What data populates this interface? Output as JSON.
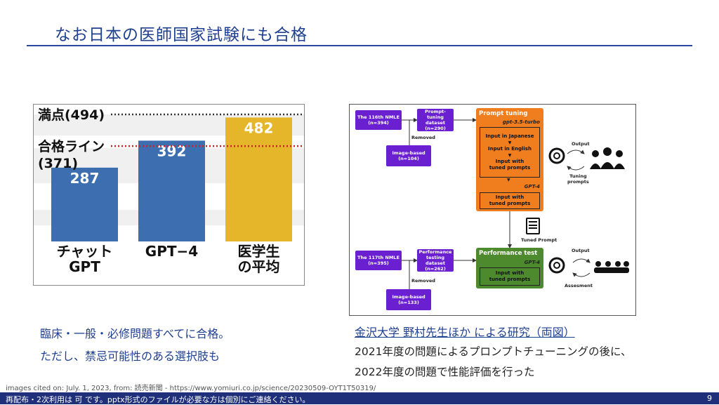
{
  "slide": {
    "title": "なお日本の医師国家試験にも合格",
    "page_number": "9"
  },
  "chart_data": {
    "type": "bar",
    "categories": [
      "チャットGPT",
      "GPT−4",
      "医学生の平均"
    ],
    "category_lines": [
      [
        "チャット",
        "GPT"
      ],
      [
        "GPT−4"
      ],
      [
        "医学生",
        "の平均"
      ]
    ],
    "values": [
      287,
      392,
      482
    ],
    "value_labels": [
      "287",
      "392",
      "482"
    ],
    "ylim": [
      0,
      494
    ],
    "reference_lines": [
      {
        "label_lines": [
          "満点(494)"
        ],
        "value": 494,
        "style": "dotted",
        "color": "#333333"
      },
      {
        "label_lines": [
          "合格ライン",
          "(371)"
        ],
        "value": 371,
        "style": "dotted",
        "color": "#cc2222"
      }
    ],
    "colors": [
      "#3d6fb0",
      "#3d6fb0",
      "#e6b62a"
    ]
  },
  "diagram": {
    "nmle116": [
      "The 116th NMLE",
      "(n=394)"
    ],
    "prompt_dataset": [
      "Prompt-tuning",
      "dataset",
      "(n=290)"
    ],
    "removed1": "Removed",
    "image_based1": [
      "Image-based",
      "(n=104)"
    ],
    "prompt_tuning_title": "Prompt tuning",
    "model_35": "gpt-3.5-turbo",
    "steps": [
      "Input in Japanese",
      "Input in English",
      "Input with",
      "tuned prompts"
    ],
    "model_gpt4_a": "GPT-4",
    "tuned_box": [
      "Input with",
      "tuned prompts"
    ],
    "output1": "Output",
    "tuning_prompts": [
      "Tuning",
      "prompts"
    ],
    "tuned_prompt": "Tuned Prompt",
    "nmle117": [
      "The 117th NMLE",
      "(n=395)"
    ],
    "perf_dataset": [
      "Performance",
      "testing dataset",
      "(n=262)"
    ],
    "removed2": "Removed",
    "image_based2": [
      "Image-based",
      "(n=133)"
    ],
    "perf_title": "Performance test",
    "model_gpt4_b": "GPT-4",
    "perf_box": [
      "Input with",
      "tuned prompts"
    ],
    "output2": "Output",
    "assessment": "Assesment"
  },
  "notes": {
    "left_line1": "臨床・一般・必修問題すべてに合格。",
    "left_line2": "ただし、禁忌可能性のある選択肢も",
    "right_link": "金沢大学 野村先生ほか による研究（両図）",
    "right_line2": "2021年度の問題によるプロンプトチューニングの後に、",
    "right_line3": "2022年度の問題で性能評価を行った"
  },
  "citation": "images cited on: July. 1, 2023, from: 読売新聞 - https://www.yomiuri.co.jp/science/20230509-OYT1T50319/",
  "footer_text": "再配布・2次利用は 可 です。pptx形式のファイルが必要な方は個別にご連絡ください。"
}
